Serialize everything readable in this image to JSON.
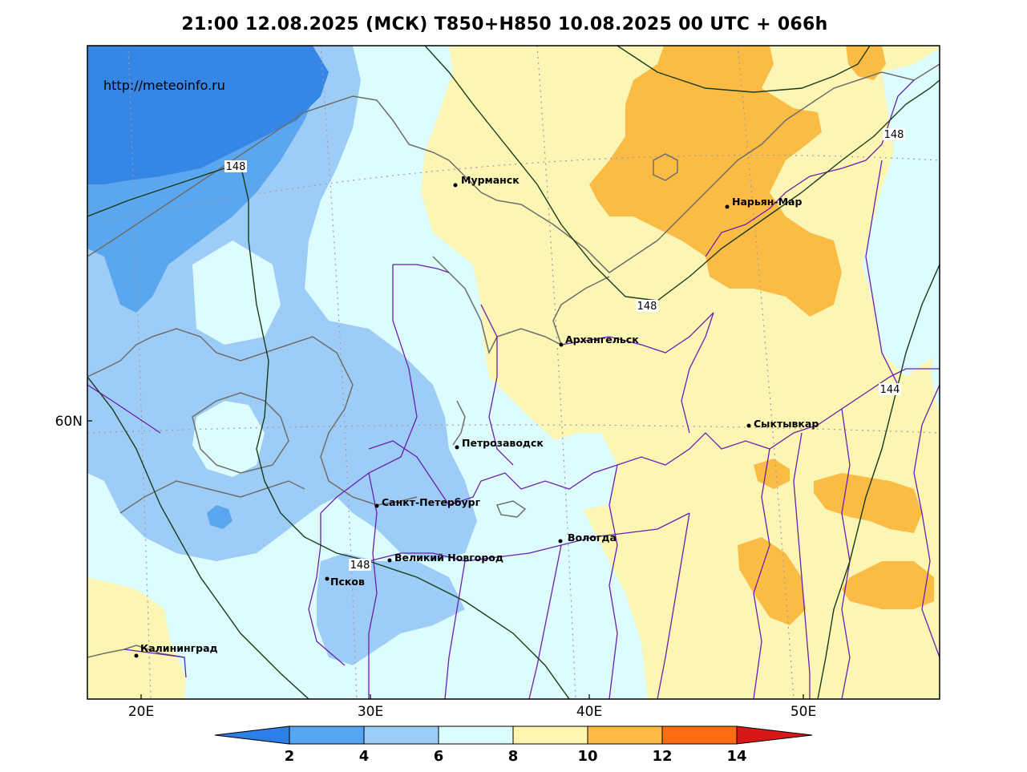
{
  "title": "21:00 12.08.2025 (МСК) T850+H850 10.08.2025 00 UTC + 066h",
  "source_url": "http://meteoinfo.ru",
  "axes": {
    "lon_ticks": [
      "20E",
      "30E",
      "40E",
      "50E"
    ],
    "lat_ticks": [
      "60N"
    ]
  },
  "cities": [
    {
      "name": "Мурманск"
    },
    {
      "name": "Нарьян-Мар"
    },
    {
      "name": "Архангельск"
    },
    {
      "name": "Сыктывкар"
    },
    {
      "name": "Петрозаводск"
    },
    {
      "name": "Санкт-Петербург"
    },
    {
      "name": "Вологда"
    },
    {
      "name": "Великий Новгород"
    },
    {
      "name": "Псков"
    },
    {
      "name": "Калининград"
    }
  ],
  "isohypse_labels": [
    "148",
    "148",
    "148",
    "148",
    "144"
  ],
  "colorbar": {
    "ticks": [
      "2",
      "4",
      "6",
      "8",
      "10",
      "12",
      "14"
    ],
    "colors": [
      "#2a7fe8",
      "#56a5f0",
      "#9ccdf6",
      "#dcfdfd",
      "#fcf6b0",
      "#fcbc44",
      "#fc6c10",
      "#d81818"
    ]
  },
  "colors": {
    "c2": "#3586e5",
    "c4": "#5aa6ef",
    "c6": "#9dcdf6",
    "c8": "#dcfcfd",
    "c10": "#fbf6b3",
    "c12": "#fbbc45",
    "coast": "#6e6e6e",
    "borders": "#6b1fb0",
    "contour": "#1b3a1b",
    "grid": "#9a9aaa"
  }
}
